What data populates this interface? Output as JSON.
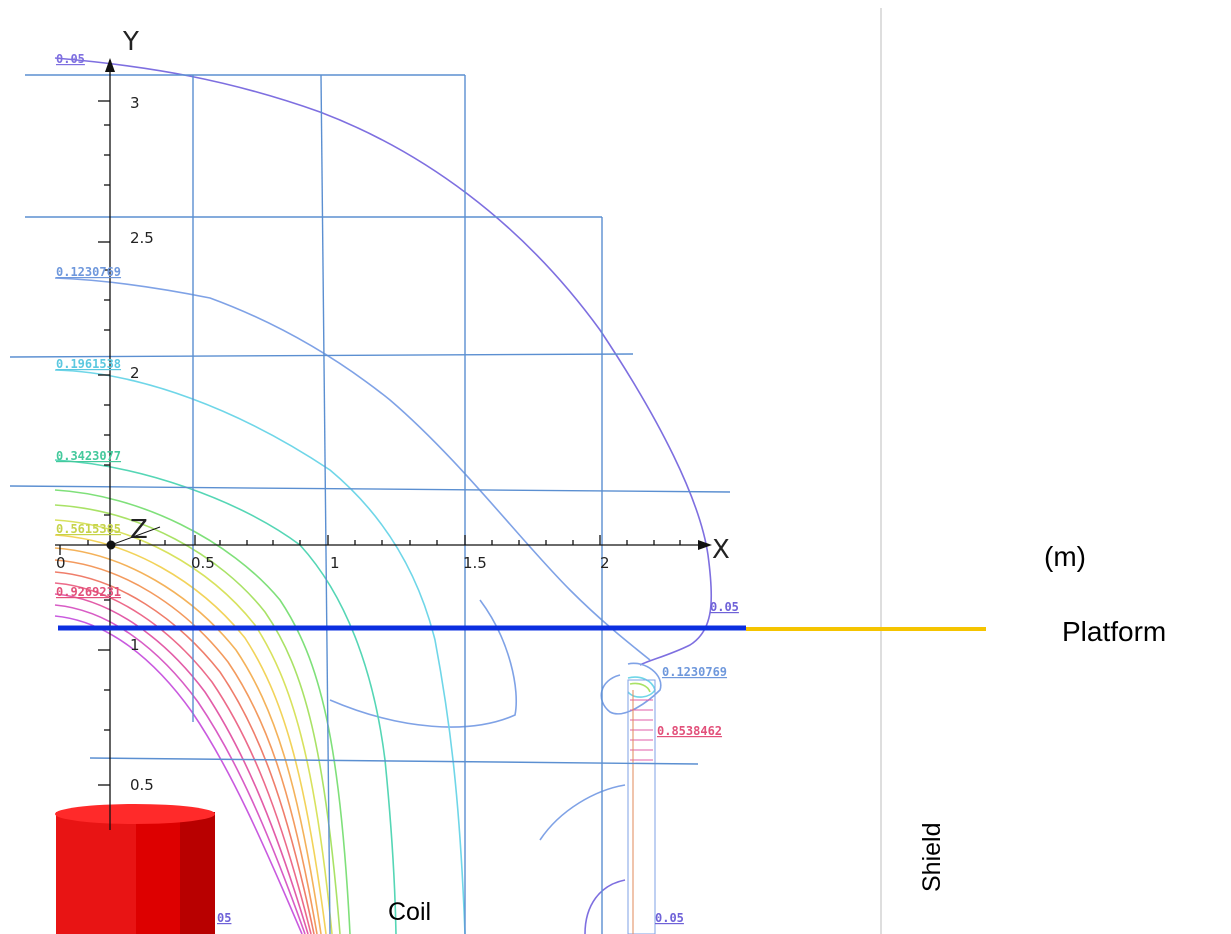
{
  "axes": {
    "x_letter": "X",
    "y_letter": "Y",
    "z_letter": "Z",
    "x_ticks": [
      "0",
      "0.5",
      "1",
      "1.5",
      "2"
    ],
    "y_ticks": [
      "3",
      "2.5",
      "2",
      "1",
      "0.5"
    ]
  },
  "contour_labels": {
    "l005_top": "0.05",
    "l0123_left": "0.1230769",
    "l0196": "0.1961538",
    "l0342": "0.3423077",
    "l0561": "0.5615385",
    "l0926": "0.9269231",
    "l005_right": "0.05",
    "l0123_right": "0.1230769",
    "l0853": "0.8538462",
    "l005_bl": "05",
    "l005_br": "0.05"
  },
  "annotations": {
    "units": "(m)",
    "platform": "Platform",
    "shield": "Shield",
    "coil": "Coil"
  },
  "colors": {
    "grid": "#5b8fd1",
    "platform_blue": "#0b2fe0",
    "platform_yellow": "#f5c400",
    "coil_red": "#e00000",
    "shield_line": "#c8c8c8"
  }
}
